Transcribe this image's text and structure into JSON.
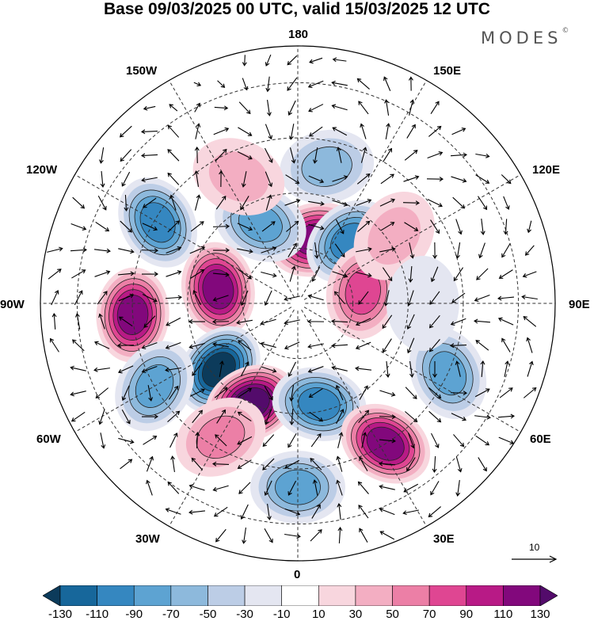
{
  "title": "Base 09/03/2025 00 UTC, valid 15/03/2025 12 UTC",
  "brand": {
    "text": "MODES",
    "mark": "©"
  },
  "longitude_labels": {
    "lon_180": "180",
    "lon_150e": "150E",
    "lon_120e": "120E",
    "lon_90e": "90E",
    "lon_60e": "60E",
    "lon_30e": "30E",
    "lon_0": "0",
    "lon_30w": "30W",
    "lon_60w": "60W",
    "lon_90w": "90W",
    "lon_120w": "120W",
    "lon_150w": "150W"
  },
  "reference_vector": {
    "label": "10"
  },
  "colorbar": {
    "ticks": [
      "-130",
      "-110",
      "-90",
      "-70",
      "-50",
      "-30",
      "-10",
      "10",
      "30",
      "50",
      "70",
      "90",
      "110",
      "130"
    ],
    "colors": [
      "#0c3b5b",
      "#17679b",
      "#3587c0",
      "#5da3d2",
      "#8db9dc",
      "#bccde6",
      "#e4e6f1",
      "#ffffff",
      "#f8d6de",
      "#f3aec2",
      "#ec7fa6",
      "#df4692",
      "#b81a86",
      "#82087c",
      "#530b6b"
    ]
  },
  "anomaly_centers": [
    {
      "sign": "positive",
      "lat": 72,
      "lon": 165,
      "level": 110
    },
    {
      "sign": "negative",
      "lat": 68,
      "lon": 140,
      "level": -90
    },
    {
      "sign": "positive",
      "lat": 72,
      "lon": 100,
      "level": 70
    },
    {
      "sign": "negative",
      "lat": 66,
      "lon": -155,
      "level": -70
    },
    {
      "sign": "negative",
      "lat": 46,
      "lon": -120,
      "level": -90
    },
    {
      "sign": "positive",
      "lat": 68,
      "lon": -100,
      "level": 110
    },
    {
      "sign": "positive",
      "lat": 45,
      "lon": -86,
      "level": 110
    },
    {
      "sign": "negative",
      "lat": 62,
      "lon": -50,
      "level": -130
    },
    {
      "sign": "positive",
      "lat": 60,
      "lon": -25,
      "level": 130
    },
    {
      "sign": "negative",
      "lat": 62,
      "lon": 12,
      "level": -90
    },
    {
      "sign": "negative",
      "lat": 45,
      "lon": -60,
      "level": -70
    },
    {
      "sign": "negative",
      "lat": 40,
      "lon": 0,
      "level": -70
    },
    {
      "sign": "positive",
      "lat": 45,
      "lon": 32,
      "level": 110
    },
    {
      "sign": "negative",
      "lat": 45,
      "lon": 65,
      "level": -70
    },
    {
      "sign": "negative",
      "lat": 52,
      "lon": 168,
      "level": -50
    },
    {
      "sign": "positive",
      "lat": 52,
      "lon": -155,
      "level": 30
    },
    {
      "sign": "positive",
      "lat": 58,
      "lon": 125,
      "level": 30
    },
    {
      "sign": "negative",
      "lat": 56,
      "lon": 90,
      "level": -10
    },
    {
      "sign": "positive",
      "lat": 48,
      "lon": -30,
      "level": 50
    }
  ]
}
